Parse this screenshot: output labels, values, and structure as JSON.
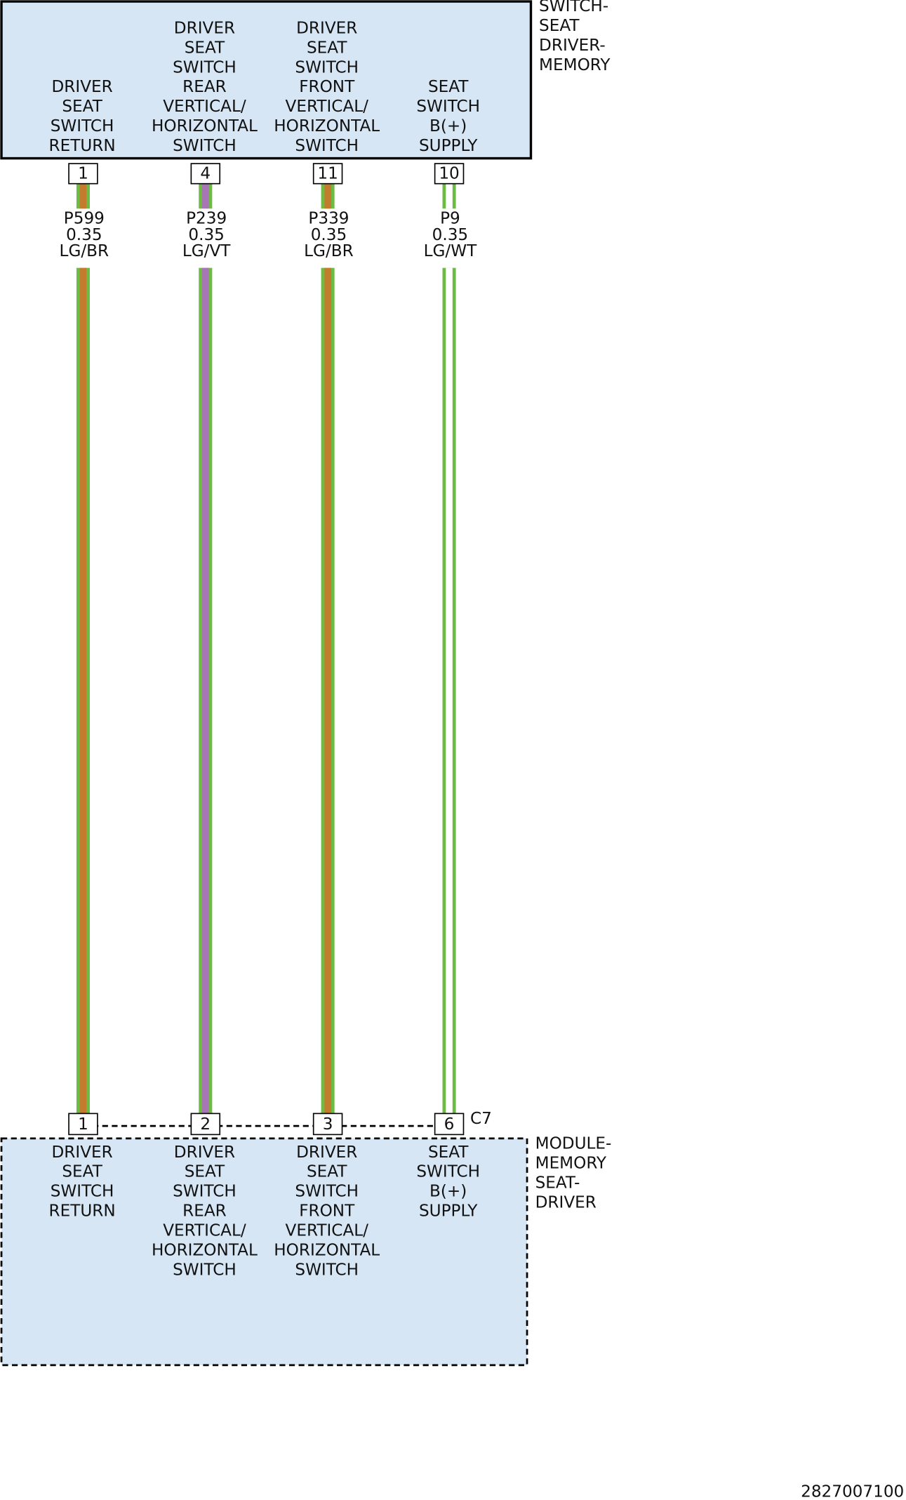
{
  "switch": {
    "name_lines": [
      "SWITCH-",
      "SEAT",
      "DRIVER-",
      "MEMORY"
    ],
    "pins": [
      {
        "number": "1",
        "function": [
          "DRIVER",
          "SEAT",
          "SWITCH",
          "RETURN"
        ]
      },
      {
        "number": "4",
        "function": [
          "DRIVER",
          "SEAT",
          "SWITCH",
          "REAR",
          "VERTICAL/",
          "HORIZONTAL",
          "SWITCH"
        ]
      },
      {
        "number": "11",
        "function": [
          "DRIVER",
          "SEAT",
          "SWITCH",
          "FRONT",
          "VERTICAL/",
          "HORIZONTAL",
          "SWITCH"
        ]
      },
      {
        "number": "10",
        "function": [
          "SEAT",
          "SWITCH",
          "B(+)",
          "SUPPLY"
        ]
      }
    ]
  },
  "wires": [
    {
      "circuit": "P599",
      "gauge": "0.35",
      "color_code": "LG/BR",
      "colors": [
        "#6dbb45",
        "#c27c2c"
      ]
    },
    {
      "circuit": "P239",
      "gauge": "0.35",
      "color_code": "LG/VT",
      "colors": [
        "#6dbb45",
        "#a776b5"
      ]
    },
    {
      "circuit": "P339",
      "gauge": "0.35",
      "color_code": "LG/BR",
      "colors": [
        "#6dbb45",
        "#c27c2c"
      ]
    },
    {
      "circuit": "P9",
      "gauge": "0.35",
      "color_code": "LG/WT",
      "colors": [
        "#6dbb45",
        "#ffffff"
      ]
    }
  ],
  "module": {
    "name_lines": [
      "MODULE-",
      "MEMORY",
      "SEAT-",
      "DRIVER"
    ],
    "connector": "C7",
    "pins": [
      {
        "number": "1",
        "function": [
          "DRIVER",
          "SEAT",
          "SWITCH",
          "RETURN"
        ]
      },
      {
        "number": "2",
        "function": [
          "DRIVER",
          "SEAT",
          "SWITCH",
          "REAR",
          "VERTICAL/",
          "HORIZONTAL",
          "SWITCH"
        ]
      },
      {
        "number": "3",
        "function": [
          "DRIVER",
          "SEAT",
          "SWITCH",
          "FRONT",
          "VERTICAL/",
          "HORIZONTAL",
          "SWITCH"
        ]
      },
      {
        "number": "6",
        "function": [
          "SEAT",
          "SWITCH",
          "B(+)",
          "SUPPLY"
        ]
      }
    ]
  },
  "diagram_id": "2827007100"
}
